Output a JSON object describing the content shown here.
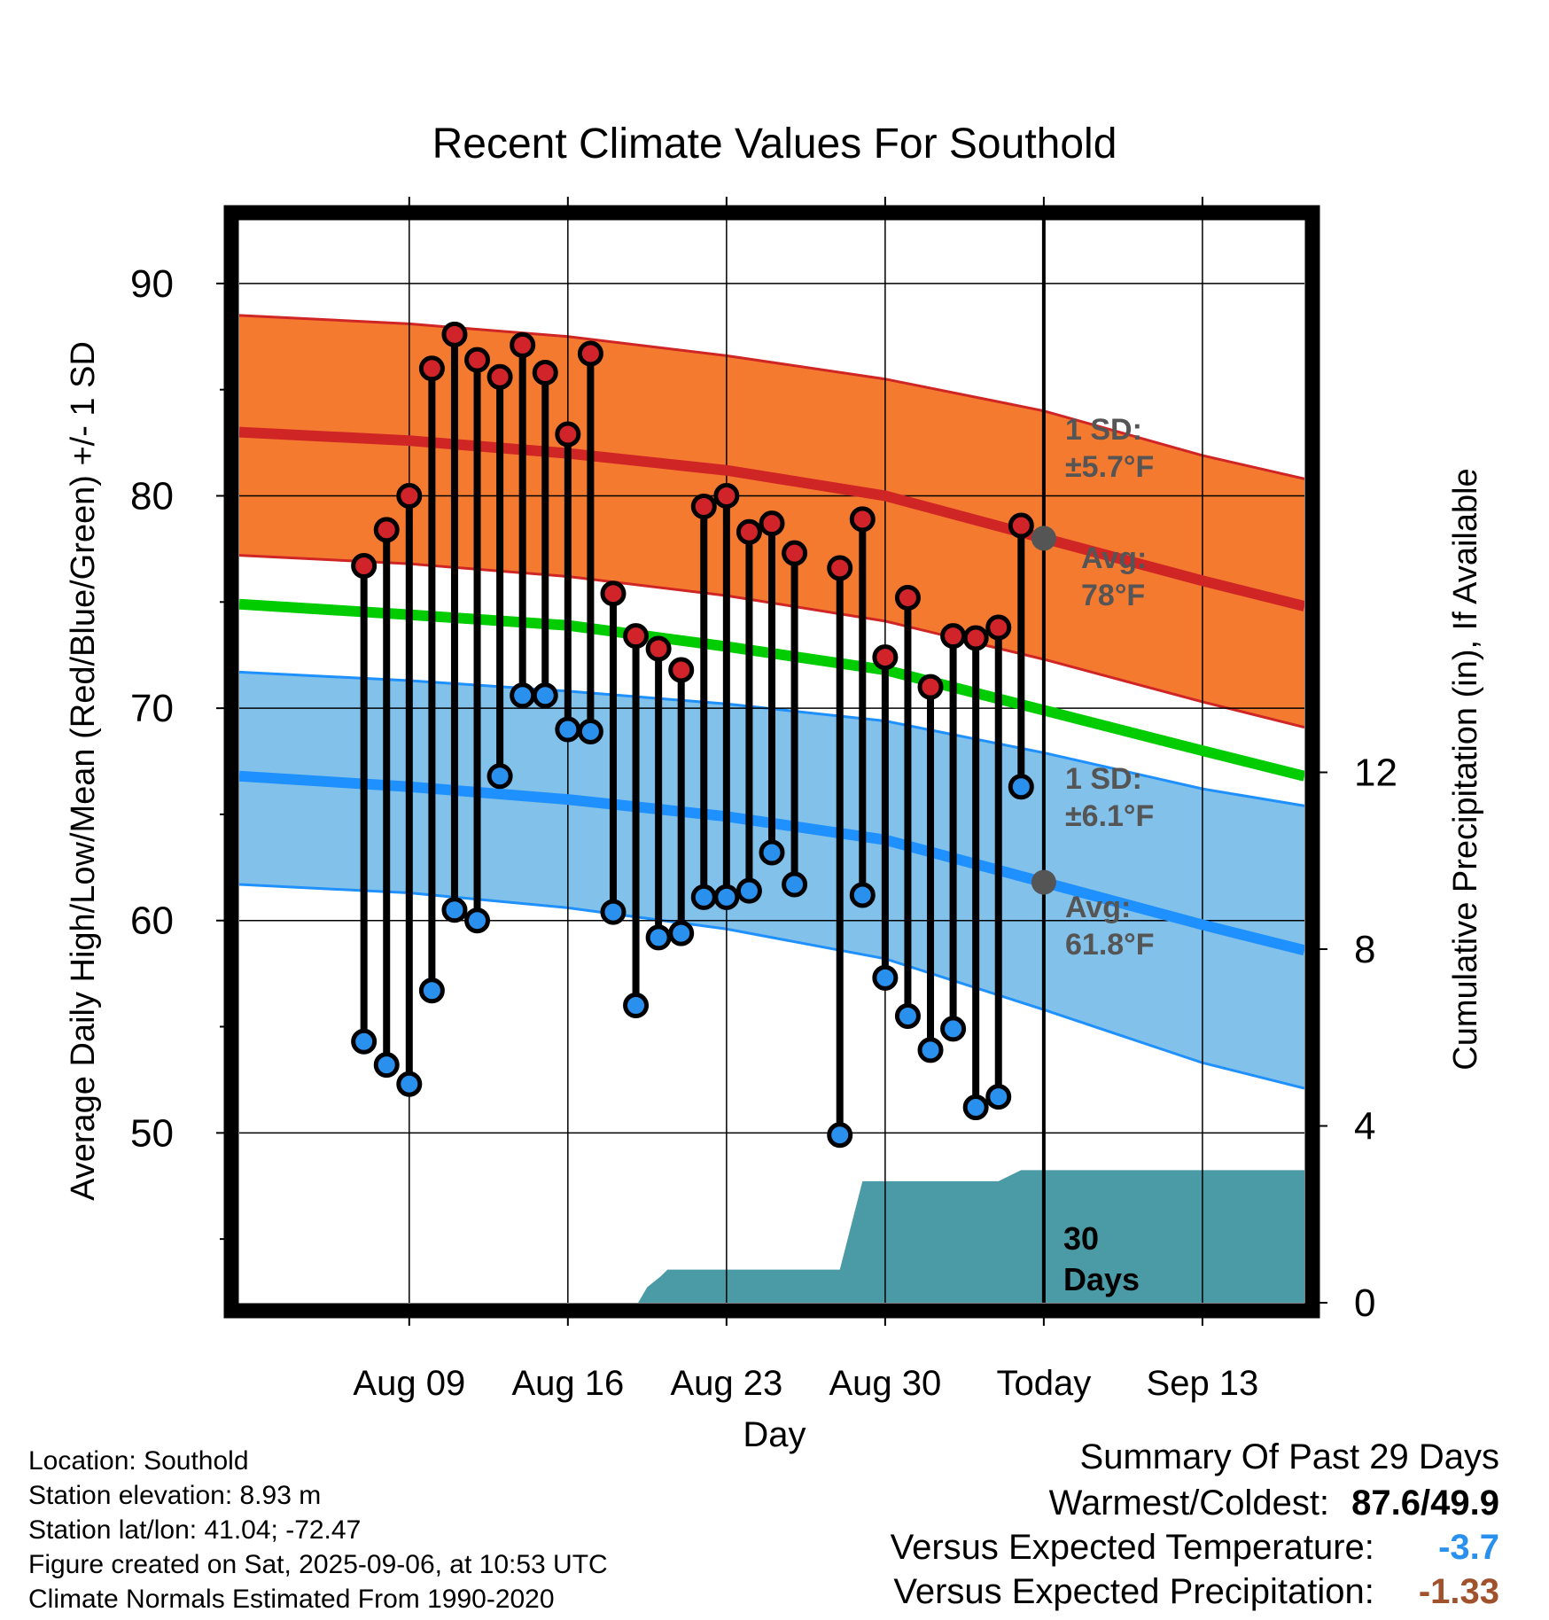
{
  "chart_data": {
    "type": "line",
    "title": "Recent Climate Values For Southold",
    "xlabel": "Day",
    "ylabel": "Average Daily High/Low/Mean (Red/Blue/Green) +/- 1 SD",
    "y2label": "Cumulative Precipitation (in), If Available",
    "ylim": [
      42,
      93
    ],
    "y2lim": [
      0,
      24.5
    ],
    "yticks": [
      50,
      60,
      70,
      80,
      90
    ],
    "y2ticks": [
      0,
      4,
      8,
      12
    ],
    "x_range_days": [
      -35.5,
      11.5
    ],
    "xticks": [
      {
        "day": -28,
        "label": "Aug 09"
      },
      {
        "day": -21,
        "label": "Aug 16"
      },
      {
        "day": -14,
        "label": "Aug 23"
      },
      {
        "day": -7,
        "label": "Aug 30"
      },
      {
        "day": 0,
        "label": "Today"
      },
      {
        "day": 7,
        "label": "Sep 13"
      }
    ],
    "grid": true,
    "today_label": "Today",
    "days_label_line1": "30",
    "days_label_line2": "Days",
    "annotations": {
      "high_sd": {
        "line1": "1 SD:",
        "line2": "±5.7°F"
      },
      "high_avg": {
        "line1": "Avg:",
        "line2": "78°F",
        "value": 78
      },
      "low_sd": {
        "line1": "1 SD:",
        "line2": "±6.1°F"
      },
      "low_avg": {
        "line1": "Avg:",
        "line2": "61.8°F",
        "value": 61.8
      }
    },
    "normals_x": [
      -35.5,
      -28,
      -21,
      -14,
      -7,
      0,
      7,
      11.5
    ],
    "normal_high": [
      83.0,
      82.6,
      82.0,
      81.2,
      80.0,
      78.0,
      76.0,
      74.8
    ],
    "normal_high_upper": [
      88.5,
      88.1,
      87.5,
      86.6,
      85.5,
      84.0,
      81.9,
      80.8
    ],
    "normal_high_lower": [
      77.2,
      76.8,
      76.2,
      75.3,
      74.1,
      72.3,
      70.3,
      69.1
    ],
    "normal_mean": [
      74.9,
      74.4,
      73.9,
      72.9,
      71.8,
      69.9,
      68.0,
      66.8
    ],
    "normal_low": [
      66.8,
      66.3,
      65.7,
      64.9,
      63.8,
      61.8,
      59.8,
      58.6
    ],
    "normal_low_upper": [
      71.7,
      71.3,
      70.8,
      70.2,
      69.4,
      67.9,
      66.2,
      65.4
    ],
    "normal_low_lower": [
      61.7,
      61.3,
      60.6,
      59.6,
      58.2,
      55.8,
      53.3,
      52.1
    ],
    "daily_days": [
      -30,
      -29,
      -28,
      -27,
      -26,
      -25,
      -24,
      -23,
      -22,
      -21,
      -20,
      -19,
      -18,
      -17,
      -16,
      -15,
      -14,
      -13,
      -12,
      -11,
      -9,
      -8,
      -7,
      -6,
      -5,
      -4,
      -3,
      -2,
      -1
    ],
    "daily_high": [
      76.7,
      78.4,
      80.0,
      86.0,
      87.6,
      86.4,
      85.6,
      87.1,
      85.8,
      82.9,
      86.7,
      75.4,
      73.4,
      72.8,
      71.8,
      79.5,
      80.0,
      78.3,
      78.7,
      77.3,
      76.6,
      78.9,
      72.4,
      75.2,
      71.0,
      73.4,
      73.3,
      73.8,
      78.6
    ],
    "daily_low": [
      54.3,
      53.2,
      52.3,
      56.7,
      60.5,
      60.0,
      66.8,
      70.6,
      70.6,
      69.0,
      68.9,
      60.4,
      56.0,
      59.2,
      59.4,
      61.1,
      61.1,
      61.4,
      63.2,
      61.7,
      49.9,
      61.2,
      57.3,
      55.5,
      53.9,
      54.9,
      51.2,
      51.7,
      66.3
    ],
    "precip_x": [
      -17.9,
      -17.5,
      -16.9,
      -16.6,
      -9.0,
      -8.0,
      -7.0,
      -2.0,
      -1.0,
      0.0,
      11.5
    ],
    "precip_y": [
      0.0,
      0.35,
      0.6,
      0.75,
      0.75,
      2.75,
      2.75,
      2.75,
      3.0,
      3.0,
      3.0
    ],
    "colors": {
      "high_band": "#f47a30",
      "high_line": "#d02525",
      "mean_line": "#00cc00",
      "low_band": "#82c1e9",
      "low_line": "#1e90ff",
      "high_marker": "#d0232a",
      "low_marker": "#2a90ee",
      "precip": "#4a9ba5",
      "avg_dot": "#555555",
      "annotation_text": "#555555"
    }
  },
  "meta": {
    "location": "Location: Southold",
    "elevation": "Station elevation: 8.93 m",
    "latlon": "Station lat/lon: 41.04; -72.47",
    "created": "Figure created on Sat, 2025-09-06, at 10:53 UTC",
    "normals": "Climate Normals Estimated From 1990-2020"
  },
  "summary": {
    "title": "Summary Of Past 29 Days",
    "warm_cold_label": "Warmest/Coldest:",
    "warm_cold_value": "87.6/49.9",
    "temp_label": "Versus Expected Temperature:",
    "temp_value": "-3.7",
    "temp_color": "#2a90ee",
    "precip_label": "Versus Expected Precipitation:",
    "precip_value": "-1.33",
    "precip_color": "#a0522d"
  }
}
